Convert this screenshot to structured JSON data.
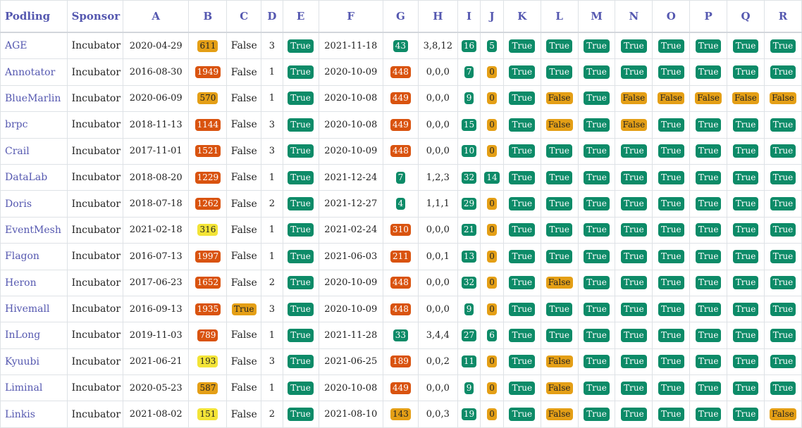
{
  "headers": [
    "Podling",
    "Sponsor",
    "A",
    "B",
    "C",
    "D",
    "E",
    "F",
    "G",
    "H",
    "I",
    "J",
    "K",
    "L",
    "M",
    "N",
    "O",
    "P",
    "Q",
    "R"
  ],
  "colors": {
    "true": "#0d8b68",
    "false": "#e49f16",
    "red": "#d9530f",
    "orange": "#e49f16",
    "yellow": "#f3e437",
    "green": "#0d8b68"
  },
  "rows": [
    {
      "podling": "AGE",
      "sponsor": "Incubator",
      "a": "2020-04-29",
      "b": "611",
      "b_color": "orange",
      "c": "False",
      "d": "3",
      "e": "True",
      "f": "2021-11-18",
      "g": "43",
      "g_color": "green",
      "h": "3,8,12",
      "i": "16",
      "i_color": "green",
      "j": "5",
      "j_color": "green",
      "k": "True",
      "l": "True",
      "m": "True",
      "n": "True",
      "o": "True",
      "p": "True",
      "q": "True",
      "r": "True"
    },
    {
      "podling": "Annotator",
      "sponsor": "Incubator",
      "a": "2016-08-30",
      "b": "1949",
      "b_color": "red",
      "c": "False",
      "d": "1",
      "e": "True",
      "f": "2020-10-09",
      "g": "448",
      "g_color": "red",
      "h": "0,0,0",
      "i": "7",
      "i_color": "green",
      "j": "0",
      "j_color": "orange",
      "k": "True",
      "l": "True",
      "m": "True",
      "n": "True",
      "o": "True",
      "p": "True",
      "q": "True",
      "r": "True"
    },
    {
      "podling": "BlueMarlin",
      "sponsor": "Incubator",
      "a": "2020-06-09",
      "b": "570",
      "b_color": "orange",
      "c": "False",
      "d": "1",
      "e": "True",
      "f": "2020-10-08",
      "g": "449",
      "g_color": "red",
      "h": "0,0,0",
      "i": "9",
      "i_color": "green",
      "j": "0",
      "j_color": "orange",
      "k": "True",
      "l": "False",
      "m": "True",
      "n": "False",
      "o": "False",
      "p": "False",
      "q": "False",
      "r": "False"
    },
    {
      "podling": "brpc",
      "sponsor": "Incubator",
      "a": "2018-11-13",
      "b": "1144",
      "b_color": "red",
      "c": "False",
      "d": "3",
      "e": "True",
      "f": "2020-10-08",
      "g": "449",
      "g_color": "red",
      "h": "0,0,0",
      "i": "15",
      "i_color": "green",
      "j": "0",
      "j_color": "orange",
      "k": "True",
      "l": "False",
      "m": "True",
      "n": "False",
      "o": "True",
      "p": "True",
      "q": "True",
      "r": "True"
    },
    {
      "podling": "Crail",
      "sponsor": "Incubator",
      "a": "2017-11-01",
      "b": "1521",
      "b_color": "red",
      "c": "False",
      "d": "3",
      "e": "True",
      "f": "2020-10-09",
      "g": "448",
      "g_color": "red",
      "h": "0,0,0",
      "i": "10",
      "i_color": "green",
      "j": "0",
      "j_color": "orange",
      "k": "True",
      "l": "True",
      "m": "True",
      "n": "True",
      "o": "True",
      "p": "True",
      "q": "True",
      "r": "True"
    },
    {
      "podling": "DataLab",
      "sponsor": "Incubator",
      "a": "2018-08-20",
      "b": "1229",
      "b_color": "red",
      "c": "False",
      "d": "1",
      "e": "True",
      "f": "2021-12-24",
      "g": "7",
      "g_color": "green",
      "h": "1,2,3",
      "i": "32",
      "i_color": "green",
      "j": "14",
      "j_color": "green",
      "k": "True",
      "l": "True",
      "m": "True",
      "n": "True",
      "o": "True",
      "p": "True",
      "q": "True",
      "r": "True"
    },
    {
      "podling": "Doris",
      "sponsor": "Incubator",
      "a": "2018-07-18",
      "b": "1262",
      "b_color": "red",
      "c": "False",
      "d": "2",
      "e": "True",
      "f": "2021-12-27",
      "g": "4",
      "g_color": "green",
      "h": "1,1,1",
      "i": "29",
      "i_color": "green",
      "j": "0",
      "j_color": "orange",
      "k": "True",
      "l": "True",
      "m": "True",
      "n": "True",
      "o": "True",
      "p": "True",
      "q": "True",
      "r": "True"
    },
    {
      "podling": "EventMesh",
      "sponsor": "Incubator",
      "a": "2021-02-18",
      "b": "316",
      "b_color": "yellow",
      "c": "False",
      "d": "1",
      "e": "True",
      "f": "2021-02-24",
      "g": "310",
      "g_color": "red",
      "h": "0,0,0",
      "i": "21",
      "i_color": "green",
      "j": "0",
      "j_color": "orange",
      "k": "True",
      "l": "True",
      "m": "True",
      "n": "True",
      "o": "True",
      "p": "True",
      "q": "True",
      "r": "True"
    },
    {
      "podling": "Flagon",
      "sponsor": "Incubator",
      "a": "2016-07-13",
      "b": "1997",
      "b_color": "red",
      "c": "False",
      "d": "1",
      "e": "True",
      "f": "2021-06-03",
      "g": "211",
      "g_color": "red",
      "h": "0,0,1",
      "i": "13",
      "i_color": "green",
      "j": "0",
      "j_color": "orange",
      "k": "True",
      "l": "True",
      "m": "True",
      "n": "True",
      "o": "True",
      "p": "True",
      "q": "True",
      "r": "True"
    },
    {
      "podling": "Heron",
      "sponsor": "Incubator",
      "a": "2017-06-23",
      "b": "1652",
      "b_color": "red",
      "c": "False",
      "d": "2",
      "e": "True",
      "f": "2020-10-09",
      "g": "448",
      "g_color": "red",
      "h": "0,0,0",
      "i": "32",
      "i_color": "green",
      "j": "0",
      "j_color": "orange",
      "k": "True",
      "l": "False",
      "m": "True",
      "n": "True",
      "o": "True",
      "p": "True",
      "q": "True",
      "r": "True"
    },
    {
      "podling": "Hivemall",
      "sponsor": "Incubator",
      "a": "2016-09-13",
      "b": "1935",
      "b_color": "red",
      "c": "True",
      "d": "3",
      "e": "True",
      "f": "2020-10-09",
      "g": "448",
      "g_color": "red",
      "h": "0,0,0",
      "i": "9",
      "i_color": "green",
      "j": "0",
      "j_color": "orange",
      "k": "True",
      "l": "True",
      "m": "True",
      "n": "True",
      "o": "True",
      "p": "True",
      "q": "True",
      "r": "True"
    },
    {
      "podling": "InLong",
      "sponsor": "Incubator",
      "a": "2019-11-03",
      "b": "789",
      "b_color": "red",
      "c": "False",
      "d": "1",
      "e": "True",
      "f": "2021-11-28",
      "g": "33",
      "g_color": "green",
      "h": "3,4,4",
      "i": "27",
      "i_color": "green",
      "j": "6",
      "j_color": "green",
      "k": "True",
      "l": "True",
      "m": "True",
      "n": "True",
      "o": "True",
      "p": "True",
      "q": "True",
      "r": "True"
    },
    {
      "podling": "Kyuubi",
      "sponsor": "Incubator",
      "a": "2021-06-21",
      "b": "193",
      "b_color": "yellow",
      "c": "False",
      "d": "3",
      "e": "True",
      "f": "2021-06-25",
      "g": "189",
      "g_color": "red",
      "h": "0,0,2",
      "i": "11",
      "i_color": "green",
      "j": "0",
      "j_color": "orange",
      "k": "True",
      "l": "False",
      "m": "True",
      "n": "True",
      "o": "True",
      "p": "True",
      "q": "True",
      "r": "True"
    },
    {
      "podling": "Liminal",
      "sponsor": "Incubator",
      "a": "2020-05-23",
      "b": "587",
      "b_color": "orange",
      "c": "False",
      "d": "1",
      "e": "True",
      "f": "2020-10-08",
      "g": "449",
      "g_color": "red",
      "h": "0,0,0",
      "i": "9",
      "i_color": "green",
      "j": "0",
      "j_color": "orange",
      "k": "True",
      "l": "False",
      "m": "True",
      "n": "True",
      "o": "True",
      "p": "True",
      "q": "True",
      "r": "True"
    },
    {
      "podling": "Linkis",
      "sponsor": "Incubator",
      "a": "2021-08-02",
      "b": "151",
      "b_color": "yellow",
      "c": "False",
      "d": "2",
      "e": "True",
      "f": "2021-08-10",
      "g": "143",
      "g_color": "orange",
      "h": "0,0,3",
      "i": "19",
      "i_color": "green",
      "j": "0",
      "j_color": "orange",
      "k": "True",
      "l": "False",
      "m": "True",
      "n": "True",
      "o": "True",
      "p": "True",
      "q": "True",
      "r": "False"
    }
  ]
}
